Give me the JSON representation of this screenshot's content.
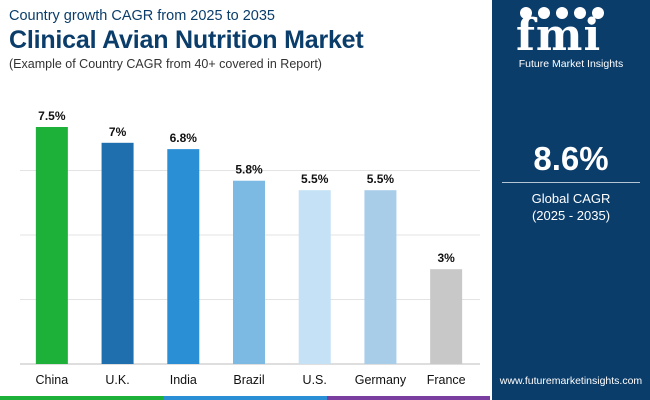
{
  "header": {
    "subtitle": "Country growth CAGR from 2025 to 2035",
    "title": "Clinical Avian Nutrition Market",
    "note": "(Example of Country CAGR from 40+ covered in Report)"
  },
  "chart_data": {
    "type": "bar",
    "categories": [
      "China",
      "U.K.",
      "India",
      "Brazil",
      "U.S.",
      "Germany",
      "France"
    ],
    "values": [
      7.5,
      7,
      6.8,
      5.8,
      5.5,
      5.5,
      3
    ],
    "value_labels": [
      "7.5%",
      "7%",
      "6.8%",
      "5.8%",
      "5.5%",
      "5.5%",
      "3%"
    ],
    "colors": [
      "#1db13a",
      "#1f6fae",
      "#2b8fd6",
      "#7cb9e3",
      "#c4e1f5",
      "#a8cde9",
      "#c8c8c8"
    ],
    "ylim": [
      0,
      7.5
    ],
    "grid": true,
    "title": "",
    "xlabel": "",
    "ylabel": ""
  },
  "sidebar": {
    "logo_letters": "fmi",
    "logo_name": "Future Market Insights",
    "cagr_value": "8.6%",
    "cagr_label_1": "Global CAGR",
    "cagr_label_2": "(2025 - 2035)",
    "website": "www.futuremarketinsights.com",
    "background": "#0b3d6b"
  },
  "bottom_band_colors": [
    "#1db13a",
    "#2b8fd6",
    "#7a3ea0"
  ]
}
